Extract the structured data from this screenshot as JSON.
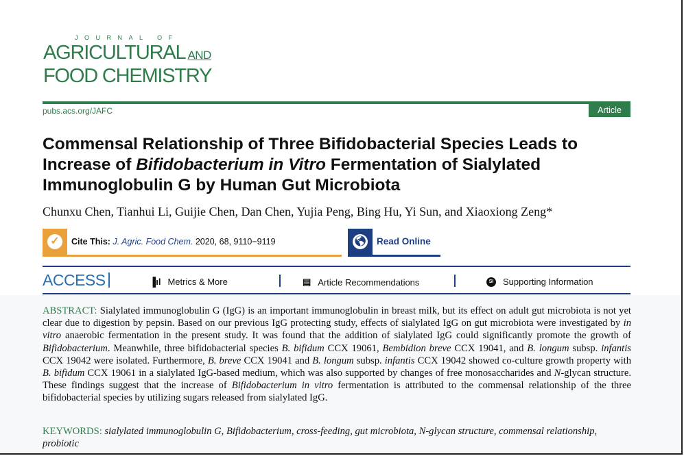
{
  "journal": {
    "logo_top": "JOURNAL OF",
    "logo_line1": "AGRICULTURAL",
    "logo_and": "AND",
    "logo_line2": "FOOD CHEMISTRY",
    "url": "pubs.acs.org/JAFC",
    "article_type": "Article",
    "brand_color": "#2e7d4a"
  },
  "title": {
    "part1": "Commensal Relationship of Three Bifidobacterial Species Leads to Increase of ",
    "italic": "Bifidobacterium in Vitro",
    "part2": " Fermentation of Sialylated Immunoglobulin G by Human Gut Microbiota"
  },
  "authors": "Chunxu Chen, Tianhui Li, Guijie Chen, Dan Chen, Yujia Peng, Bing Hu, Yi Sun, and Xiaoxiong Zeng*",
  "cite": {
    "label": "Cite This:",
    "journal": "J. Agric. Food Chem.",
    "details": "2020, 68, 9110−9119",
    "icon": "checkmark-icon"
  },
  "read_online": {
    "label": "Read Online",
    "icon": "globe-icon"
  },
  "access": {
    "label": "ACCESS",
    "tabs": [
      {
        "label": "Metrics & More",
        "icon": "bar-chart-icon"
      },
      {
        "label": "Article Recommendations",
        "icon": "newspaper-icon"
      },
      {
        "label": "Supporting Information",
        "icon": "si-icon",
        "icon_text": "SI"
      }
    ]
  },
  "abstract": {
    "label": "ABSTRACT:",
    "segments": [
      {
        "text": " Sialylated immunoglobulin G (IgG) is an important immunoglobulin in breast milk, but its effect on adult gut microbiota is not yet clear due to digestion by pepsin. Based on our previous IgG protecting study, effects of sialylated IgG on gut microbiota were investigated by ",
        "italic": false
      },
      {
        "text": "in vitro",
        "italic": true
      },
      {
        "text": " anaerobic fermentation in the present study. It was found that the addition of sialylated IgG could significantly promote the growth of ",
        "italic": false
      },
      {
        "text": "Bifidobacterium",
        "italic": true
      },
      {
        "text": ". Meanwhile, three bifidobacterial species ",
        "italic": false
      },
      {
        "text": "B. bifidum",
        "italic": true
      },
      {
        "text": " CCX 19061, ",
        "italic": false
      },
      {
        "text": "Bembidion breve",
        "italic": true
      },
      {
        "text": " CCX 19041, and ",
        "italic": false
      },
      {
        "text": "B. longum",
        "italic": true
      },
      {
        "text": " subsp. ",
        "italic": false
      },
      {
        "text": "infantis",
        "italic": true
      },
      {
        "text": " CCX 19042 were isolated. Furthermore, ",
        "italic": false
      },
      {
        "text": "B. breve",
        "italic": true
      },
      {
        "text": " CCX 19041 and ",
        "italic": false
      },
      {
        "text": "B. longum",
        "italic": true
      },
      {
        "text": " subsp. ",
        "italic": false
      },
      {
        "text": "infantis",
        "italic": true
      },
      {
        "text": " CCX 19042 showed co-culture growth property with ",
        "italic": false
      },
      {
        "text": "B. bifidum",
        "italic": true
      },
      {
        "text": " CCX 19061 in a sialylated IgG-based medium, which was also supported by changes of free monosaccharides and ",
        "italic": false
      },
      {
        "text": "N",
        "italic": true
      },
      {
        "text": "-glycan structure. These findings suggest that the increase of ",
        "italic": false
      },
      {
        "text": "Bifidobacterium in vitro",
        "italic": true
      },
      {
        "text": " fermentation is attributed to the commensal relationship of the three bifidobacterial species by utilizing sugars released from sialylated IgG.",
        "italic": false
      }
    ]
  },
  "keywords": {
    "label": "KEYWORDS:",
    "text": "sialylated immunoglobulin G, Bifidobacterium, cross-feeding, gut microbiota, N-glycan structure, commensal relationship, probiotic"
  }
}
